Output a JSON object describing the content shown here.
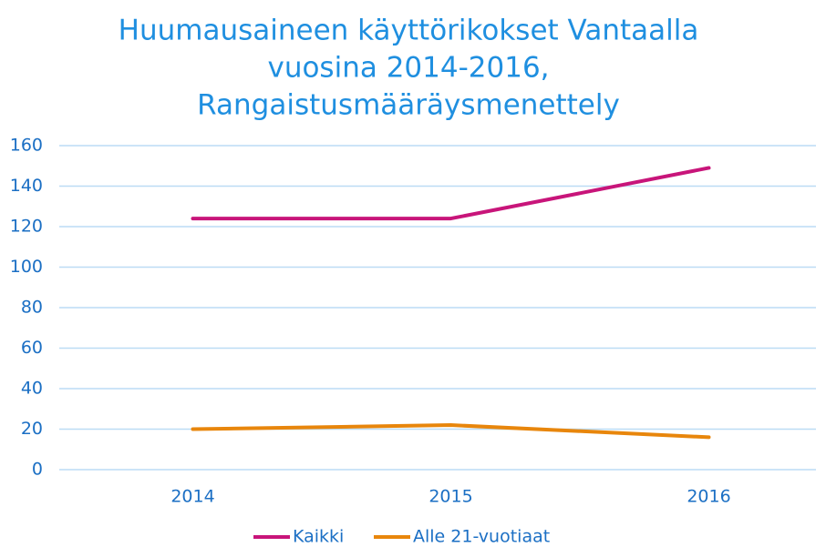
{
  "chart_data": {
    "type": "line",
    "title": [
      "Huumausaineen käyttörikokset Vantaalla",
      "vuosina 2014-2016,",
      "Rangaistusmääräysmenettely"
    ],
    "categories": [
      "2014",
      "2015",
      "2016"
    ],
    "series": [
      {
        "name": "Kaikki",
        "color": "#c8157a",
        "values": [
          124,
          124,
          149
        ]
      },
      {
        "name": "Alle 21-vuotiaat",
        "color": "#e8860c",
        "values": [
          20,
          22,
          16
        ]
      }
    ],
    "ylim": [
      0,
      160
    ],
    "yticks": [
      0,
      20,
      40,
      60,
      80,
      100,
      120,
      140,
      160
    ],
    "grid": true,
    "legend": "bottom"
  }
}
